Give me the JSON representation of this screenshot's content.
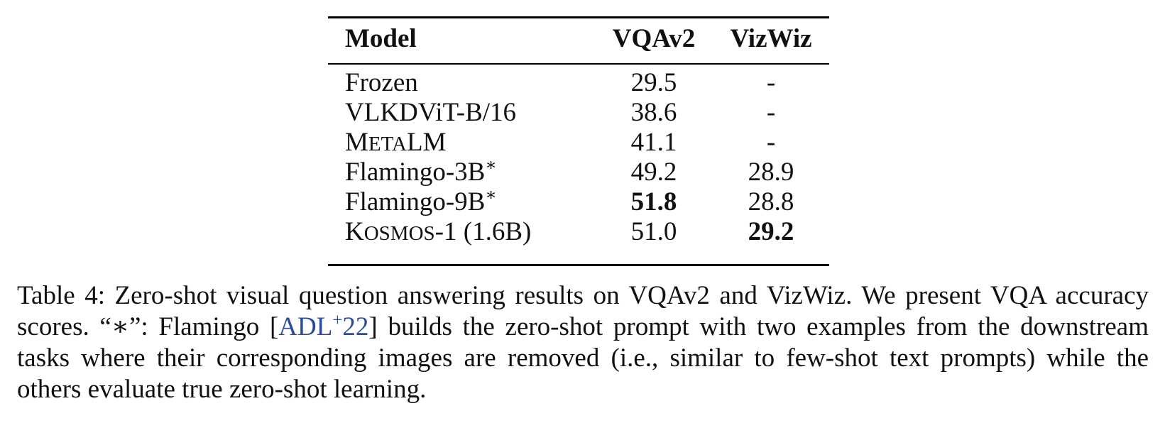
{
  "table": {
    "columns": [
      "Model",
      "VQAv2",
      "VizWiz"
    ],
    "rows": [
      {
        "model": "Frozen",
        "vqav2": "29.5",
        "vizwiz": "-"
      },
      {
        "model": "VLKDViT-B/16",
        "vqav2": "38.6",
        "vizwiz": "-"
      },
      {
        "model_sc": [
          "M",
          "ETA",
          "LM"
        ],
        "vqav2": "41.1",
        "vizwiz": "-"
      },
      {
        "model": "Flamingo-3B",
        "model_mark": "∗",
        "vqav2": "49.2",
        "vizwiz": "28.9"
      },
      {
        "model": "Flamingo-9B",
        "model_mark": "∗",
        "vqav2": "51.8",
        "vqav2_bold": true,
        "vizwiz": "28.8"
      },
      {
        "model_sc": [
          "K",
          "OSMOS",
          "-1 (1.6B)"
        ],
        "vqav2": "51.0",
        "vizwiz": "29.2",
        "vizwiz_bold": true
      }
    ]
  },
  "caption": {
    "part1": "Table 4: Zero-shot visual question answering results on VQAv2 and VizWiz.  We present VQA accuracy scores. “∗”: Flamingo [",
    "cite": "ADL",
    "cite_sup": "+",
    "cite_year": "22",
    "part2": "] builds the zero-shot prompt with two examples from the downstream tasks where their corresponding images are removed (i.e., similar to few-shot text prompts) while the others evaluate true zero-shot learning."
  }
}
